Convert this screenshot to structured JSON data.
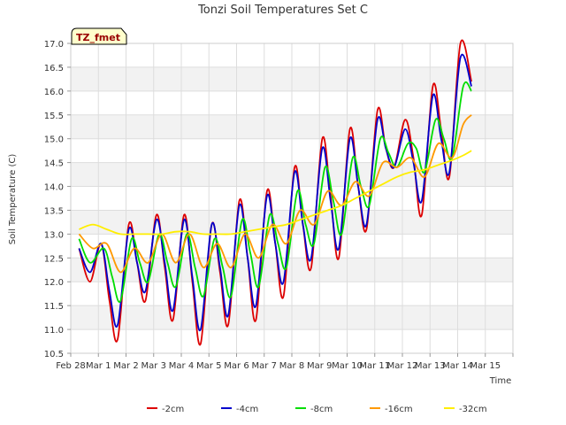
{
  "chart_data": {
    "type": "line",
    "title": "Tonzi Soil Temperatures Set C",
    "xlabel": "Time",
    "ylabel": "Soil Temperature (C)",
    "annotation": "TZ_fmet",
    "xlim": [
      0,
      16
    ],
    "ylim": [
      10.5,
      17.0
    ],
    "x_tick_values": [
      0,
      1,
      2,
      3,
      4,
      5,
      6,
      7,
      8,
      9,
      10,
      11,
      12,
      13,
      14,
      15,
      16
    ],
    "x_tick_labels": [
      "Feb 28",
      "Mar 1",
      "Mar 2",
      "Mar 3",
      "Mar 4",
      "Mar 5",
      "Mar 6",
      "Mar 7",
      "Mar 8",
      "Mar 9",
      "Mar 10",
      "Mar 11",
      "Mar 12",
      "Mar 13",
      "Mar 14",
      "Mar 15",
      ""
    ],
    "y_ticks": [
      10.5,
      11.0,
      11.5,
      12.0,
      12.5,
      13.0,
      13.5,
      14.0,
      14.5,
      15.0,
      15.5,
      16.0,
      16.5,
      17.0
    ],
    "y_tick_labels": [
      "10.5",
      "11.0",
      "11.5",
      "12.0",
      "12.5",
      "13.0",
      "13.5",
      "14.0",
      "14.5",
      "15.0",
      "15.5",
      "16.0",
      "16.5",
      "17.0"
    ],
    "grid": true,
    "banded_background": true,
    "legend_position": "bottom-center",
    "series": [
      {
        "name": "-2cm",
        "color": "#dd0000",
        "x": [
          0.3,
          0.7,
          1.1,
          1.4,
          1.7,
          2.1,
          2.4,
          2.7,
          3.1,
          3.4,
          3.7,
          4.1,
          4.4,
          4.7,
          5.1,
          5.4,
          5.7,
          6.1,
          6.4,
          6.7,
          7.1,
          7.4,
          7.7,
          8.1,
          8.4,
          8.7,
          9.1,
          9.4,
          9.7,
          10.1,
          10.4,
          10.7,
          11.1,
          11.4,
          11.7,
          12.1,
          12.4,
          12.7,
          13.1,
          13.4,
          13.7,
          14.1,
          14.5
        ],
        "y": [
          12.7,
          12.0,
          12.8,
          11.6,
          10.8,
          13.2,
          12.4,
          11.6,
          13.4,
          12.3,
          11.2,
          13.4,
          12.0,
          10.7,
          13.2,
          12.2,
          11.1,
          13.7,
          12.5,
          11.2,
          13.9,
          12.8,
          11.7,
          14.4,
          13.2,
          12.3,
          15.0,
          13.8,
          12.5,
          15.2,
          14.0,
          13.1,
          15.6,
          14.8,
          14.4,
          15.4,
          14.6,
          13.4,
          16.1,
          15.2,
          14.2,
          17.0,
          16.2
        ]
      },
      {
        "name": "-4cm",
        "color": "#0000cc",
        "x": [
          0.3,
          0.7,
          1.1,
          1.4,
          1.7,
          2.1,
          2.4,
          2.7,
          3.1,
          3.4,
          3.7,
          4.1,
          4.4,
          4.7,
          5.1,
          5.4,
          5.7,
          6.1,
          6.4,
          6.7,
          7.1,
          7.4,
          7.7,
          8.1,
          8.4,
          8.7,
          9.1,
          9.4,
          9.7,
          10.1,
          10.4,
          10.7,
          11.1,
          11.4,
          11.7,
          12.1,
          12.4,
          12.7,
          13.1,
          13.4,
          13.7,
          14.1,
          14.5
        ],
        "y": [
          12.7,
          12.2,
          12.8,
          11.8,
          11.1,
          13.1,
          12.4,
          11.8,
          13.3,
          12.4,
          11.4,
          13.3,
          12.1,
          11.0,
          13.2,
          12.3,
          11.3,
          13.6,
          12.5,
          11.5,
          13.8,
          12.8,
          12.0,
          14.3,
          13.2,
          12.5,
          14.8,
          13.7,
          12.7,
          15.0,
          14.0,
          13.2,
          15.4,
          14.8,
          14.4,
          15.2,
          14.5,
          13.7,
          15.9,
          15.0,
          14.3,
          16.7,
          16.1
        ]
      },
      {
        "name": "-8cm",
        "color": "#00dd00",
        "x": [
          0.3,
          0.7,
          1.2,
          1.5,
          1.8,
          2.2,
          2.5,
          2.8,
          3.2,
          3.5,
          3.8,
          4.2,
          4.5,
          4.8,
          5.2,
          5.5,
          5.8,
          6.2,
          6.5,
          6.8,
          7.2,
          7.5,
          7.8,
          8.2,
          8.5,
          8.8,
          9.2,
          9.5,
          9.8,
          10.2,
          10.5,
          10.8,
          11.2,
          11.5,
          11.8,
          12.2,
          12.5,
          12.8,
          13.2,
          13.5,
          13.8,
          14.2,
          14.5
        ],
        "y": [
          12.9,
          12.4,
          12.7,
          12.1,
          11.6,
          12.9,
          12.4,
          12.0,
          13.0,
          12.4,
          11.9,
          13.0,
          12.3,
          11.7,
          12.9,
          12.3,
          11.7,
          13.3,
          12.6,
          11.9,
          13.4,
          12.8,
          12.3,
          13.9,
          13.2,
          12.8,
          14.4,
          13.7,
          13.0,
          14.6,
          14.0,
          13.6,
          15.0,
          14.7,
          14.4,
          14.9,
          14.8,
          14.3,
          15.4,
          15.0,
          14.6,
          16.1,
          16.0
        ]
      },
      {
        "name": "-16cm",
        "color": "#ff9900",
        "x": [
          0.3,
          0.8,
          1.3,
          1.8,
          2.3,
          2.8,
          3.3,
          3.8,
          4.3,
          4.8,
          5.3,
          5.8,
          6.3,
          6.8,
          7.3,
          7.8,
          8.3,
          8.8,
          9.3,
          9.8,
          10.3,
          10.8,
          11.3,
          11.8,
          12.3,
          12.8,
          13.3,
          13.8,
          14.2,
          14.5
        ],
        "y": [
          13.0,
          12.7,
          12.8,
          12.2,
          12.7,
          12.4,
          13.0,
          12.4,
          13.0,
          12.3,
          12.8,
          12.3,
          13.0,
          12.5,
          13.2,
          12.8,
          13.5,
          13.2,
          13.9,
          13.6,
          14.1,
          13.8,
          14.5,
          14.4,
          14.6,
          14.2,
          14.9,
          14.6,
          15.3,
          15.5
        ]
      },
      {
        "name": "-32cm",
        "color": "#ffee00",
        "x": [
          0.3,
          0.8,
          1.3,
          1.8,
          2.3,
          2.8,
          3.3,
          3.8,
          4.3,
          4.8,
          5.3,
          5.8,
          6.3,
          6.8,
          7.3,
          7.8,
          8.3,
          8.8,
          9.3,
          9.8,
          10.3,
          10.8,
          11.3,
          11.8,
          12.3,
          12.8,
          13.3,
          13.8,
          14.2,
          14.5
        ],
        "y": [
          13.1,
          13.2,
          13.1,
          13.0,
          13.0,
          13.0,
          13.0,
          13.05,
          13.05,
          13.0,
          13.0,
          13.0,
          13.05,
          13.1,
          13.15,
          13.2,
          13.3,
          13.4,
          13.5,
          13.6,
          13.75,
          13.9,
          14.05,
          14.2,
          14.3,
          14.35,
          14.45,
          14.55,
          14.65,
          14.75
        ]
      }
    ]
  }
}
